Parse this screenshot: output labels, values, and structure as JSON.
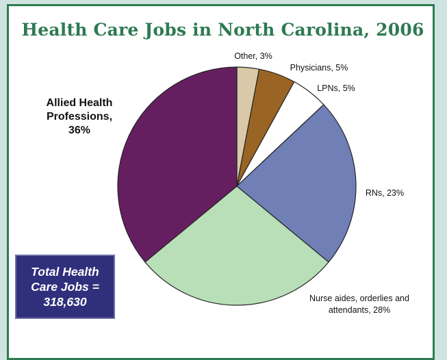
{
  "chart_data": {
    "type": "pie",
    "title": "Health Care Jobs in North Carolina, 2006",
    "slices": [
      {
        "label_lines": [
          "Other, 3%"
        ],
        "value": 3,
        "color": "#d9c9a8"
      },
      {
        "label_lines": [
          "Physicians, 5%"
        ],
        "value": 5,
        "color": "#9a6424"
      },
      {
        "label_lines": [
          "LPNs, 5%"
        ],
        "value": 5,
        "color": "#ffffff"
      },
      {
        "label_lines": [
          "RNs, 23%"
        ],
        "value": 23,
        "color": "#717fb7"
      },
      {
        "label_lines": [
          "Nurse aides, orderlies and",
          "attendants, 28%"
        ],
        "value": 28,
        "color": "#b8dfb8"
      },
      {
        "label_lines": [
          "Allied Health",
          "Professions,",
          "36%"
        ],
        "value": 36,
        "color": "#651f61"
      }
    ]
  },
  "total_box": {
    "lines": [
      "Total Health",
      "Care Jobs =",
      "318,630"
    ]
  }
}
